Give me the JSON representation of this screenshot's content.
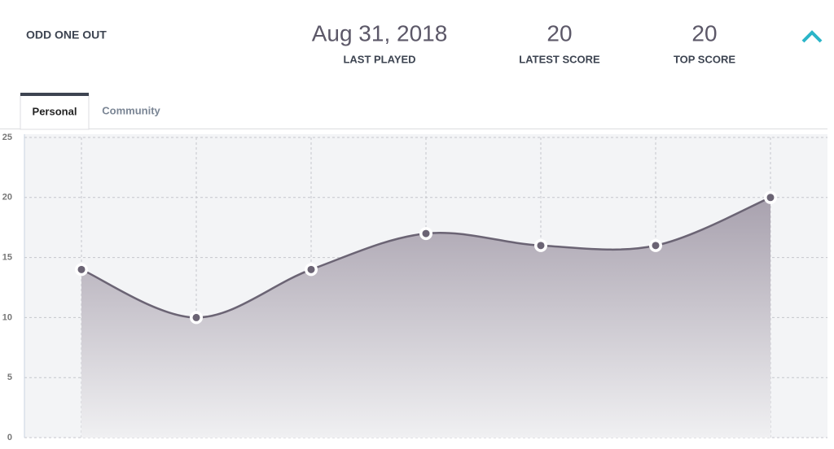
{
  "header": {
    "title": "ODD ONE OUT",
    "stats": [
      {
        "value": "Aug 31, 2018",
        "label": "LAST PLAYED"
      },
      {
        "value": 20,
        "label": "LATEST SCORE"
      },
      {
        "value": 20,
        "label": "TOP SCORE"
      }
    ]
  },
  "tabs": [
    "Personal",
    "Community"
  ],
  "chart_data": {
    "type": "area",
    "values": [
      14,
      10,
      14,
      17,
      16,
      16,
      20
    ],
    "color": "#6b6474",
    "ylim": [
      0,
      25
    ],
    "yticks": [
      0,
      5,
      10,
      15,
      20,
      25
    ],
    "grid": true
  }
}
